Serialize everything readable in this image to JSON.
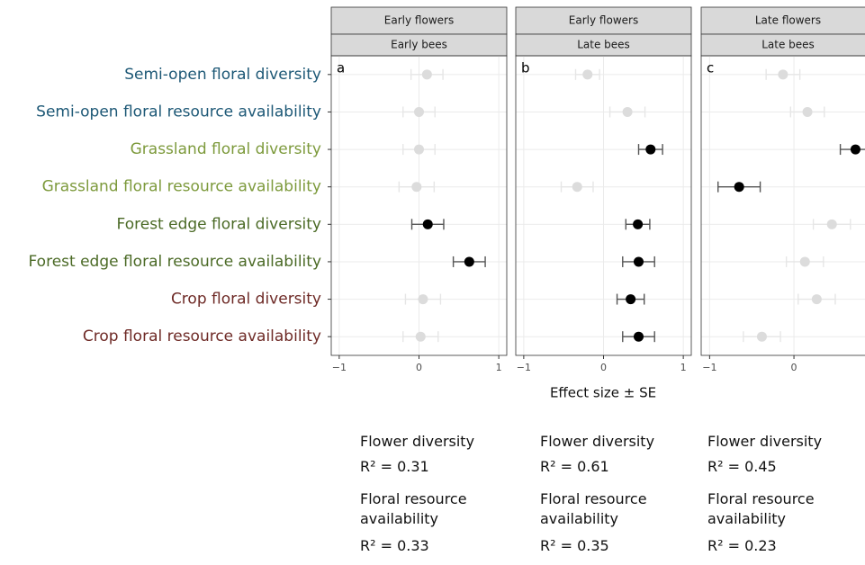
{
  "chart_data": {
    "type": "forest",
    "xlabel": "Effect size ± SE",
    "categories": [
      "Semi-open floral diversity",
      "Semi-open floral resource availability",
      "Grassland floral diversity",
      "Grassland floral resource availability",
      "Forest edge floral diversity",
      "Forest edge floral resource availability",
      "Crop floral diversity",
      "Crop floral resource availability"
    ],
    "category_colors": [
      "#1d5876",
      "#1d5876",
      "#7d9a3c",
      "#7d9a3c",
      "#4b6a26",
      "#4b6a26",
      "#6e2a26",
      "#6e2a26"
    ],
    "grid": true,
    "facets": [
      {
        "strip_top": "Early flowers",
        "strip_bottom": "Early bees",
        "tag": "a",
        "xlim": [
          -1.1,
          1.1
        ],
        "xticks": [
          {
            "value": -1,
            "label": "−1"
          },
          0,
          1
        ],
        "values": [
          0.1,
          0.0,
          0.0,
          -0.03,
          0.11,
          0.63,
          0.05,
          0.02
        ],
        "errors": [
          0.2,
          0.2,
          0.2,
          0.22,
          0.2,
          0.2,
          0.22,
          0.22
        ],
        "colors": [
          "#dcdcdc",
          "#dcdcdc",
          "#dcdcdc",
          "#dcdcdc",
          "#000000",
          "#000000",
          "#dcdcdc",
          "#dcdcdc"
        ],
        "annotations": {
          "first_title": "Flower diversity",
          "first_r2": "R² = 0.31",
          "second_title": "Floral resource availability",
          "second_r2": "R² = 0.33"
        }
      },
      {
        "strip_top": "Early flowers",
        "strip_bottom": "Late bees",
        "tag": "b",
        "xlim": [
          -1.1,
          1.1
        ],
        "xticks": [
          {
            "value": -1,
            "label": "−1"
          },
          0,
          1
        ],
        "values": [
          -0.2,
          0.3,
          0.59,
          -0.33,
          0.43,
          0.44,
          0.34,
          0.44
        ],
        "errors": [
          0.15,
          0.22,
          0.15,
          0.2,
          0.15,
          0.2,
          0.17,
          0.2
        ],
        "colors": [
          "#dcdcdc",
          "#dcdcdc",
          "#000000",
          "#dcdcdc",
          "#000000",
          "#000000",
          "#000000",
          "#000000"
        ],
        "annotations": {
          "first_title": "Flower diversity",
          "first_r2": "R² = 0.61",
          "second_title": "Floral resource availability",
          "second_r2": "R² = 0.35"
        }
      },
      {
        "strip_top": "Late flowers",
        "strip_bottom": "Late bees",
        "tag": "c",
        "xlim": [
          -1.1,
          0.96
        ],
        "xticks": [
          {
            "value": -1,
            "label": "−1"
          },
          0
        ],
        "values": [
          -0.13,
          0.16,
          0.73,
          -0.65,
          0.45,
          0.13,
          0.27,
          -0.38
        ],
        "errors": [
          0.2,
          0.2,
          0.18,
          0.25,
          0.22,
          0.22,
          0.22,
          0.22
        ],
        "colors": [
          "#dcdcdc",
          "#dcdcdc",
          "#000000",
          "#000000",
          "#dcdcdc",
          "#dcdcdc",
          "#dcdcdc",
          "#dcdcdc"
        ],
        "annotations": {
          "first_title": "Flower diversity",
          "first_r2": "R² = 0.45",
          "second_title": "Floral resource availability",
          "second_r2": "R² = 0.23"
        }
      }
    ]
  }
}
